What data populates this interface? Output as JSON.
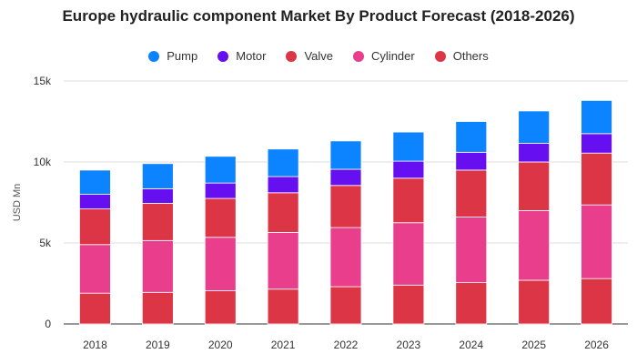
{
  "chart_data": {
    "type": "bar",
    "stacked": true,
    "title": "Europe hydraulic component Market By Product Forecast (2018-2026)",
    "ylabel": "USD Mn",
    "xlabel": "",
    "categories": [
      "2018",
      "2019",
      "2020",
      "2021",
      "2022",
      "2023",
      "2024",
      "2025",
      "2026"
    ],
    "ylim": [
      0,
      15000
    ],
    "yticks": [
      0,
      5000,
      10000,
      15000
    ],
    "ytick_labels": [
      "0",
      "5k",
      "10k",
      "15k"
    ],
    "grid": true,
    "legend_position": "top",
    "series": [
      {
        "name": "Others",
        "color": "#dc3545",
        "values": [
          1900,
          1950,
          2050,
          2150,
          2300,
          2400,
          2550,
          2700,
          2800
        ]
      },
      {
        "name": "Cylinder",
        "color": "#e83e8c",
        "values": [
          3000,
          3200,
          3300,
          3500,
          3650,
          3850,
          4050,
          4300,
          4550
        ]
      },
      {
        "name": "Valve",
        "color": "#dc3545",
        "values": [
          2200,
          2300,
          2400,
          2450,
          2600,
          2750,
          2900,
          3000,
          3200
        ]
      },
      {
        "name": "Motor",
        "color": "#6610f2",
        "values": [
          900,
          900,
          950,
          1000,
          1000,
          1050,
          1100,
          1150,
          1200
        ]
      },
      {
        "name": "Pump",
        "color": "#0d84ff",
        "values": [
          1500,
          1550,
          1650,
          1700,
          1750,
          1800,
          1900,
          2000,
          2050
        ]
      }
    ],
    "legend_order": [
      "Pump",
      "Motor",
      "Valve",
      "Cylinder",
      "Others"
    ]
  }
}
